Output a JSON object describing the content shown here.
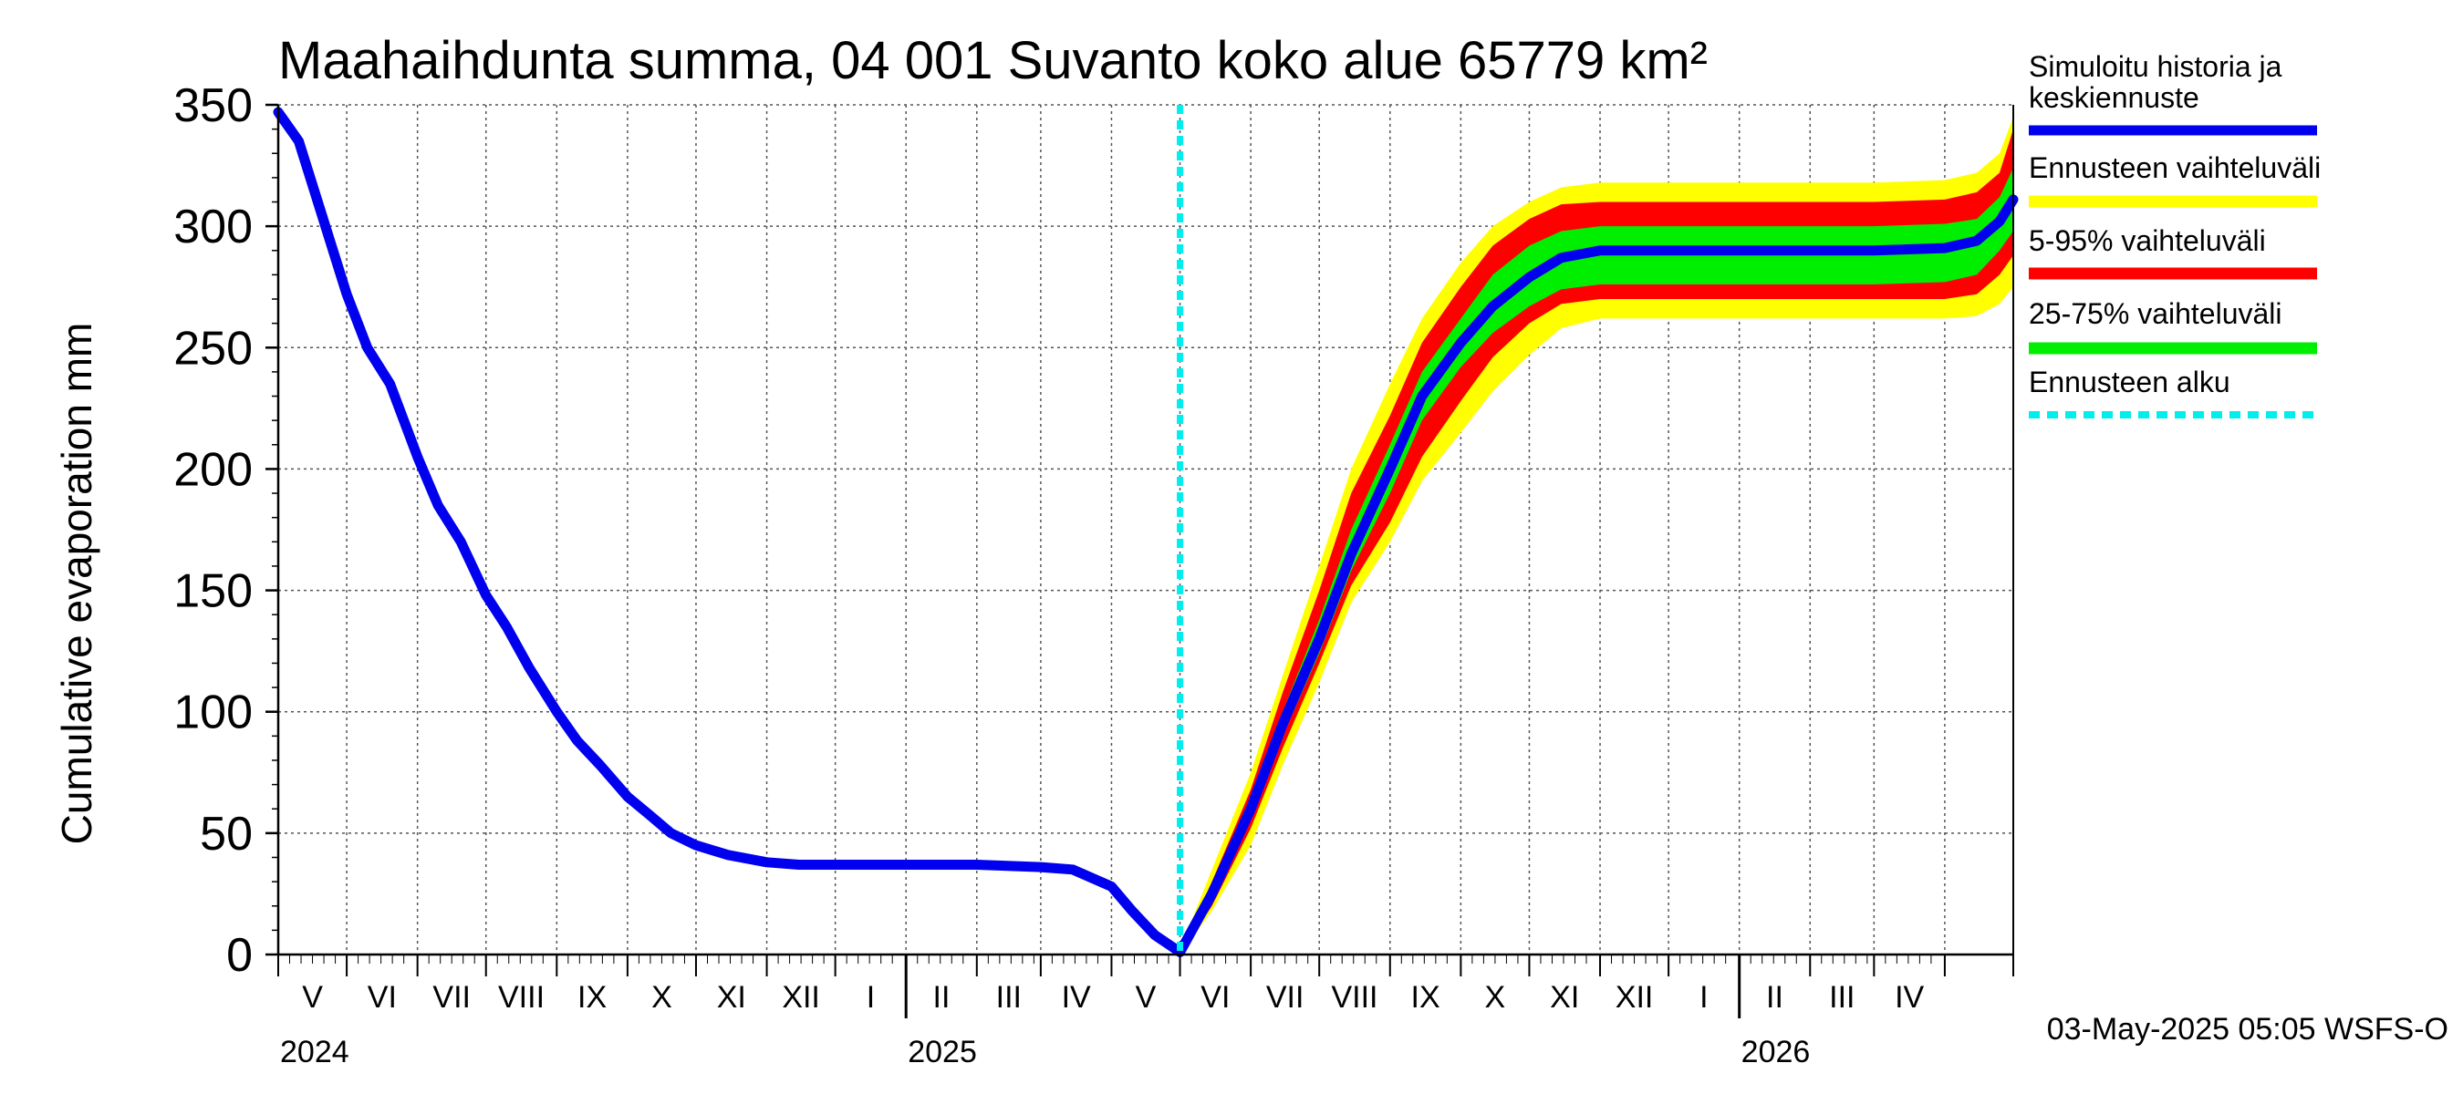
{
  "chart_data": {
    "type": "area",
    "title": "Maahaihdunta summa, 04 001 Suvanto koko alue 65779 km²",
    "ylabel": "Cumulative evaporation   mm",
    "xlabel": "",
    "ylim": [
      0,
      350
    ],
    "yticks": [
      0,
      50,
      100,
      150,
      200,
      250,
      300,
      350
    ],
    "grid": true,
    "legend_position": "right",
    "x_range": [
      "2024-04-01",
      "2026-05-01"
    ],
    "month_labels": [
      "V",
      "VI",
      "VII",
      "VIII",
      "IX",
      "X",
      "XI",
      "XII",
      "I",
      "II",
      "III",
      "IV",
      "V",
      "VI",
      "VII",
      "VIII",
      "IX",
      "X",
      "XI",
      "XII",
      "I",
      "II",
      "III",
      "IV"
    ],
    "year_labels": [
      "2024",
      "2025",
      "2026"
    ],
    "forecast_start": "2025-05-01",
    "legend": [
      {
        "label": "Simuloitu historia ja keskiennuste",
        "color": "#0000ee",
        "style": "solid"
      },
      {
        "label": "Ennusteen vaihteluväli",
        "color": "#ffff00",
        "style": "solid"
      },
      {
        "label": "5-95% vaihteluväli",
        "color": "#ff0000",
        "style": "solid"
      },
      {
        "label": "25-75% vaihteluväli",
        "color": "#00ee00",
        "style": "solid"
      },
      {
        "label": "Ennusteen alku",
        "color": "#00eeee",
        "style": "dashed"
      }
    ],
    "series": [
      {
        "name": "Simuloitu historia ja keskiennuste",
        "color": "#0000ee",
        "points": [
          [
            "2024-04-01",
            347
          ],
          [
            "2024-04-10",
            335
          ],
          [
            "2024-04-20",
            305
          ],
          [
            "2024-05-01",
            272
          ],
          [
            "2024-05-10",
            250
          ],
          [
            "2024-05-20",
            235
          ],
          [
            "2024-06-01",
            205
          ],
          [
            "2024-06-10",
            185
          ],
          [
            "2024-06-20",
            170
          ],
          [
            "2024-07-01",
            148
          ],
          [
            "2024-07-10",
            135
          ],
          [
            "2024-07-20",
            118
          ],
          [
            "2024-08-01",
            100
          ],
          [
            "2024-08-10",
            88
          ],
          [
            "2024-08-20",
            78
          ],
          [
            "2024-09-01",
            65
          ],
          [
            "2024-09-10",
            58
          ],
          [
            "2024-09-20",
            50
          ],
          [
            "2024-10-01",
            45
          ],
          [
            "2024-10-15",
            41
          ],
          [
            "2024-11-01",
            38
          ],
          [
            "2024-11-15",
            37
          ],
          [
            "2024-12-01",
            37
          ],
          [
            "2025-01-01",
            37
          ],
          [
            "2025-02-01",
            37
          ],
          [
            "2025-03-01",
            36
          ],
          [
            "2025-03-15",
            35
          ],
          [
            "2025-04-01",
            28
          ],
          [
            "2025-04-10",
            18
          ],
          [
            "2025-04-20",
            8
          ],
          [
            "2025-05-01",
            1
          ]
        ]
      },
      {
        "name": "Keskiennuste",
        "color": "#0000ee",
        "points": [
          [
            "2025-05-01",
            1
          ],
          [
            "2025-05-15",
            25
          ],
          [
            "2025-06-01",
            60
          ],
          [
            "2025-06-15",
            95
          ],
          [
            "2025-07-01",
            130
          ],
          [
            "2025-07-15",
            165
          ],
          [
            "2025-08-01",
            200
          ],
          [
            "2025-08-15",
            230
          ],
          [
            "2025-09-01",
            252
          ],
          [
            "2025-09-15",
            267
          ],
          [
            "2025-10-01",
            279
          ],
          [
            "2025-10-15",
            287
          ],
          [
            "2025-11-01",
            290
          ],
          [
            "2025-12-01",
            290
          ],
          [
            "2026-01-01",
            290
          ],
          [
            "2026-02-01",
            290
          ],
          [
            "2026-03-01",
            290
          ],
          [
            "2026-04-01",
            291
          ],
          [
            "2026-04-15",
            294
          ],
          [
            "2026-04-25",
            302
          ],
          [
            "2026-05-01",
            311
          ]
        ]
      }
    ],
    "bands": [
      {
        "name": "Ennusteen vaihteluväli",
        "color": "#ffff00",
        "x": [
          "2025-05-01",
          "2025-05-15",
          "2025-06-01",
          "2025-06-15",
          "2025-07-01",
          "2025-07-15",
          "2025-08-01",
          "2025-08-15",
          "2025-09-01",
          "2025-09-15",
          "2025-10-01",
          "2025-10-15",
          "2025-11-01",
          "2025-12-01",
          "2026-01-01",
          "2026-02-01",
          "2026-03-01",
          "2026-04-01",
          "2026-04-15",
          "2026-04-25",
          "2026-05-01"
        ],
        "upper": [
          2,
          35,
          75,
          115,
          160,
          200,
          235,
          262,
          285,
          300,
          310,
          316,
          318,
          318,
          318,
          318,
          318,
          319,
          322,
          330,
          345
        ],
        "lower": [
          0,
          18,
          45,
          78,
          112,
          145,
          170,
          195,
          215,
          232,
          247,
          258,
          262,
          262,
          262,
          262,
          262,
          262,
          263,
          268,
          275
        ]
      },
      {
        "name": "5-95% vaihteluväli",
        "color": "#ff0000",
        "x": [
          "2025-05-01",
          "2025-05-15",
          "2025-06-01",
          "2025-06-15",
          "2025-07-01",
          "2025-07-15",
          "2025-08-01",
          "2025-08-15",
          "2025-09-01",
          "2025-09-15",
          "2025-10-01",
          "2025-10-15",
          "2025-11-01",
          "2025-12-01",
          "2026-01-01",
          "2026-02-01",
          "2026-03-01",
          "2026-04-01",
          "2026-04-15",
          "2026-04-25",
          "2026-05-01"
        ],
        "upper": [
          1,
          30,
          68,
          108,
          150,
          190,
          222,
          252,
          275,
          292,
          303,
          309,
          310,
          310,
          310,
          310,
          310,
          311,
          314,
          322,
          340
        ],
        "lower": [
          0,
          20,
          52,
          85,
          120,
          152,
          178,
          205,
          228,
          246,
          260,
          268,
          270,
          270,
          270,
          270,
          270,
          270,
          272,
          280,
          288
        ]
      },
      {
        "name": "25-75% vaihteluväli",
        "color": "#00ee00",
        "x": [
          "2025-05-01",
          "2025-05-15",
          "2025-06-01",
          "2025-06-15",
          "2025-07-01",
          "2025-07-15",
          "2025-08-01",
          "2025-08-15",
          "2025-09-01",
          "2025-09-15",
          "2025-10-01",
          "2025-10-15",
          "2025-11-01",
          "2025-12-01",
          "2026-01-01",
          "2026-02-01",
          "2026-03-01",
          "2026-04-01",
          "2026-04-15",
          "2026-04-25",
          "2026-05-01"
        ],
        "upper": [
          1,
          27,
          63,
          100,
          138,
          175,
          210,
          240,
          262,
          280,
          292,
          298,
          300,
          300,
          300,
          300,
          300,
          301,
          303,
          312,
          324
        ],
        "lower": [
          0,
          23,
          57,
          90,
          124,
          158,
          190,
          220,
          242,
          256,
          267,
          274,
          276,
          276,
          276,
          276,
          276,
          277,
          280,
          290,
          298
        ]
      }
    ]
  },
  "footer": {
    "timestamp": "03-May-2025 05:05 WSFS-O"
  }
}
